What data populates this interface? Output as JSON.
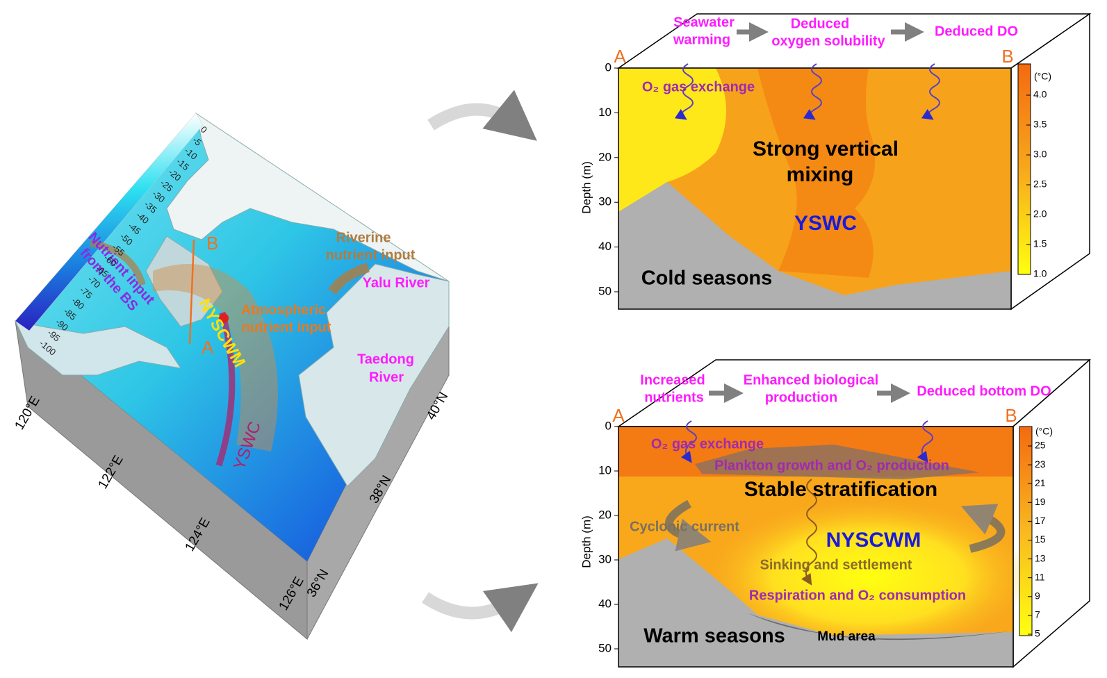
{
  "map": {
    "depth_colorbar_ticks": [
      0,
      -5,
      -10,
      -15,
      -20,
      -25,
      -30,
      -35,
      -40,
      -45,
      -50,
      -55,
      -60,
      -65,
      -70,
      -75,
      -80,
      -85,
      -90,
      -95,
      -100
    ],
    "longitudes": [
      "120°E",
      "122°E",
      "124°E",
      "126°E"
    ],
    "latitudes": [
      "36°N",
      "38°N",
      "40°N"
    ],
    "labels": {
      "bs_input": [
        "Nutrient input",
        "from the BS"
      ],
      "riverine_input": [
        "Riverine",
        "nutrient input"
      ],
      "yalu": "Yalu River",
      "atmospheric_input": [
        "Atmospheric",
        "nutrient input"
      ],
      "taedong": [
        "Taedong",
        "River"
      ],
      "nyscwm": "NYSCWM",
      "yswc": "YSWC",
      "point_a": "A",
      "point_b": "B"
    }
  },
  "cold_section": {
    "endpoint_a": "A",
    "endpoint_b": "B",
    "process": [
      [
        "Seawater",
        "warming"
      ],
      [
        "Deduced",
        "oxygen solubility"
      ],
      [
        "Deduced DO"
      ]
    ],
    "gas_exchange": "O₂ gas exchange",
    "mixing": [
      "Strong vertical",
      "mixing"
    ],
    "current": "YSWC",
    "season": "Cold seasons",
    "depth_axis_title": "Depth (m)",
    "depth_ticks": [
      0,
      10,
      20,
      30,
      40,
      50
    ],
    "colorbar_unit": "(°C)",
    "colorbar_ticks": [
      "4.0",
      "3.5",
      "3.0",
      "2.5",
      "2.0",
      "1.5",
      "1.0"
    ]
  },
  "warm_section": {
    "endpoint_a": "A",
    "endpoint_b": "B",
    "process": [
      [
        "Increased",
        "nutrients"
      ],
      [
        "Enhanced biological",
        "production"
      ],
      [
        "Deduced bottom DO"
      ]
    ],
    "gas_exchange": "O₂ gas exchange",
    "plankton": "Plankton growth and O₂ production",
    "stratification": "Stable stratification",
    "cyclonic": "Cyclonic current",
    "water_mass": "NYSCWM",
    "sinking": "Sinking and settlement",
    "respiration": "Respiration and O₂ consumption",
    "season": "Warm seasons",
    "mud": "Mud area",
    "depth_axis_title": "Depth (m)",
    "depth_ticks": [
      0,
      10,
      20,
      30,
      40,
      50
    ],
    "colorbar_unit": "(°C)",
    "colorbar_ticks": [
      25,
      23,
      21,
      19,
      17,
      15,
      13,
      11,
      9,
      7,
      5
    ]
  }
}
